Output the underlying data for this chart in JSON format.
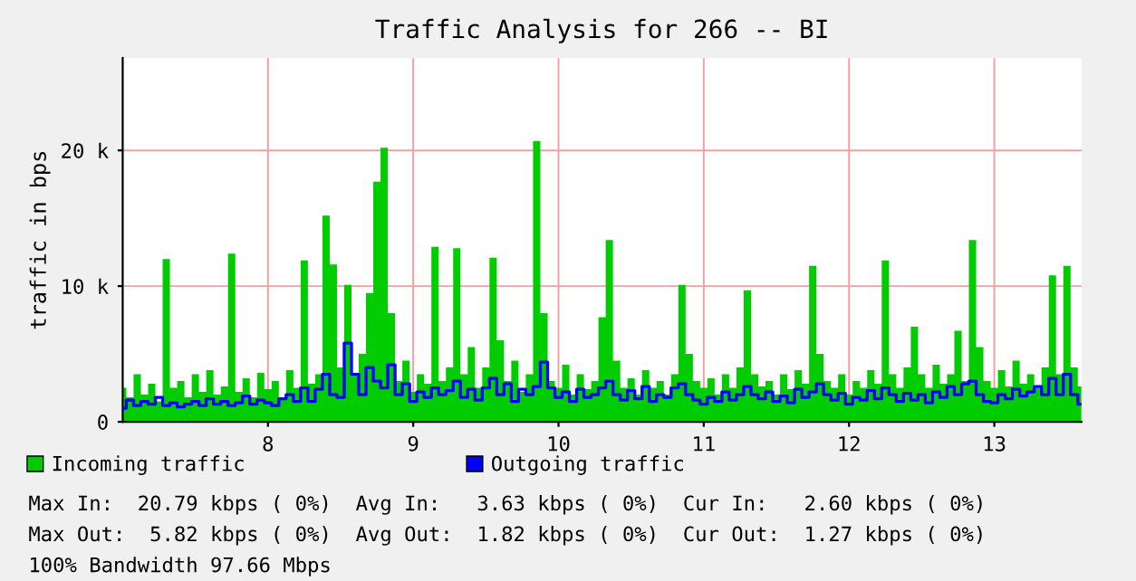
{
  "chart_data": {
    "type": "area",
    "title": "Traffic Analysis for 266 -- BI",
    "ylabel": "traffic in bps",
    "x": [
      7.0,
      7.05,
      7.1,
      7.15,
      7.2,
      7.25,
      7.3,
      7.35,
      7.4,
      7.45,
      7.5,
      7.55,
      7.6,
      7.65,
      7.7,
      7.75,
      7.8,
      7.85,
      7.9,
      7.95,
      8.0,
      8.05,
      8.1,
      8.15,
      8.2,
      8.25,
      8.3,
      8.35,
      8.4,
      8.45,
      8.5,
      8.55,
      8.6,
      8.65,
      8.7,
      8.75,
      8.8,
      8.85,
      8.9,
      8.95,
      9.0,
      9.05,
      9.1,
      9.15,
      9.2,
      9.25,
      9.3,
      9.35,
      9.4,
      9.45,
      9.5,
      9.55,
      9.6,
      9.65,
      9.7,
      9.75,
      9.8,
      9.85,
      9.9,
      9.95,
      10.0,
      10.05,
      10.1,
      10.15,
      10.2,
      10.25,
      10.3,
      10.35,
      10.4,
      10.45,
      10.5,
      10.55,
      10.6,
      10.65,
      10.7,
      10.75,
      10.8,
      10.85,
      10.9,
      10.95,
      11.0,
      11.05,
      11.1,
      11.15,
      11.2,
      11.25,
      11.3,
      11.35,
      11.4,
      11.45,
      11.5,
      11.55,
      11.6,
      11.65,
      11.7,
      11.75,
      11.8,
      11.85,
      11.9,
      11.95,
      12.0,
      12.05,
      12.1,
      12.15,
      12.2,
      12.25,
      12.3,
      12.35,
      12.4,
      12.45,
      12.5,
      12.55,
      12.6,
      12.65,
      12.7,
      12.75,
      12.8,
      12.85,
      12.9,
      12.95,
      13.0,
      13.05,
      13.1,
      13.15,
      13.2,
      13.25,
      13.3,
      13.35,
      13.4,
      13.45,
      13.5,
      13.55,
      13.6
    ],
    "series": [
      {
        "name": "Incoming traffic",
        "color": "#00cc00",
        "values": [
          2500,
          1800,
          3500,
          2000,
          2800,
          1500,
          12000,
          2500,
          3000,
          1800,
          3500,
          2200,
          3800,
          2000,
          2600,
          12400,
          2200,
          3200,
          1800,
          3600,
          2400,
          3000,
          1600,
          3800,
          2500,
          11900,
          2800,
          3500,
          15200,
          11600,
          4000,
          10100,
          3500,
          5000,
          9500,
          17700,
          20200,
          8000,
          3000,
          4500,
          2200,
          3500,
          2800,
          12900,
          3000,
          4000,
          12800,
          3500,
          5500,
          2500,
          4000,
          12100,
          6000,
          3000,
          4500,
          2200,
          3500,
          20700,
          8000,
          3000,
          2500,
          4200,
          2000,
          3500,
          2400,
          3000,
          7700,
          13400,
          4500,
          2500,
          3200,
          2000,
          3800,
          2500,
          3000,
          2000,
          3500,
          10100,
          5000,
          3000,
          2500,
          3200,
          2000,
          3500,
          2500,
          4000,
          9700,
          3500,
          2600,
          3000,
          2000,
          3500,
          2400,
          3800,
          2800,
          11500,
          5000,
          3000,
          2500,
          3500,
          2000,
          3000,
          2500,
          3800,
          2800,
          11900,
          3500,
          2500,
          4000,
          7000,
          3500,
          2500,
          4200,
          2800,
          3500,
          6700,
          3000,
          13400,
          5500,
          3000,
          2500,
          3800,
          2600,
          4500,
          2800,
          3500,
          2500,
          4000,
          10800,
          3500,
          11500,
          4000,
          2600
        ]
      },
      {
        "name": "Outgoing traffic",
        "type": "line",
        "color": "#0000ff",
        "values": [
          1000,
          1600,
          1200,
          1500,
          1300,
          1800,
          1200,
          1400,
          1100,
          1300,
          1500,
          1200,
          1700,
          1300,
          1500,
          1200,
          1400,
          1900,
          1300,
          1600,
          1400,
          1200,
          1700,
          2000,
          1500,
          2500,
          1500,
          2400,
          3500,
          2000,
          1800,
          5800,
          3500,
          2000,
          4000,
          3000,
          2500,
          4200,
          2000,
          2800,
          1500,
          2200,
          1800,
          2500,
          2000,
          2300,
          3000,
          1800,
          2400,
          1600,
          2500,
          3200,
          2000,
          2800,
          1500,
          2400,
          2000,
          2600,
          4400,
          2500,
          1800,
          2200,
          1500,
          2400,
          1800,
          2000,
          2500,
          3000,
          2000,
          1600,
          2300,
          1700,
          2600,
          1500,
          2000,
          1800,
          2500,
          2800,
          2000,
          1600,
          1300,
          1800,
          1500,
          2200,
          1600,
          2000,
          2600,
          2000,
          1700,
          2200,
          1500,
          1900,
          1400,
          2400,
          1800,
          2200,
          2800,
          2000,
          1600,
          2100,
          1300,
          1800,
          1600,
          2300,
          1700,
          2500,
          2000,
          1500,
          2100,
          1600,
          2000,
          1400,
          2200,
          1800,
          2600,
          2000,
          2800,
          3000,
          2000,
          1500,
          1400,
          2000,
          1700,
          2400,
          1900,
          2200,
          2600,
          2000,
          3200,
          2000,
          3500,
          2000,
          1300
        ]
      }
    ],
    "xlim": [
      7.0,
      13.6
    ],
    "xticks": [
      8,
      9,
      10,
      11,
      12,
      13
    ],
    "ylim": [
      0,
      26800
    ],
    "yticks": [
      0,
      {
        "value": 10000,
        "label": "10 k"
      },
      {
        "value": 20000,
        "label": "20 k"
      }
    ],
    "grid": true,
    "legend": "bottom",
    "annotations": [
      "Max In:  20.79 kbps ( 0%)  Avg In:   3.63 kbps ( 0%)  Cur In:   2.60 kbps ( 0%)",
      "Max Out:  5.82 kbps ( 0%)  Avg Out:  1.82 kbps ( 0%)  Cur Out:  1.27 kbps ( 0%)",
      "100% Bandwidth 97.66 Mbps"
    ]
  }
}
